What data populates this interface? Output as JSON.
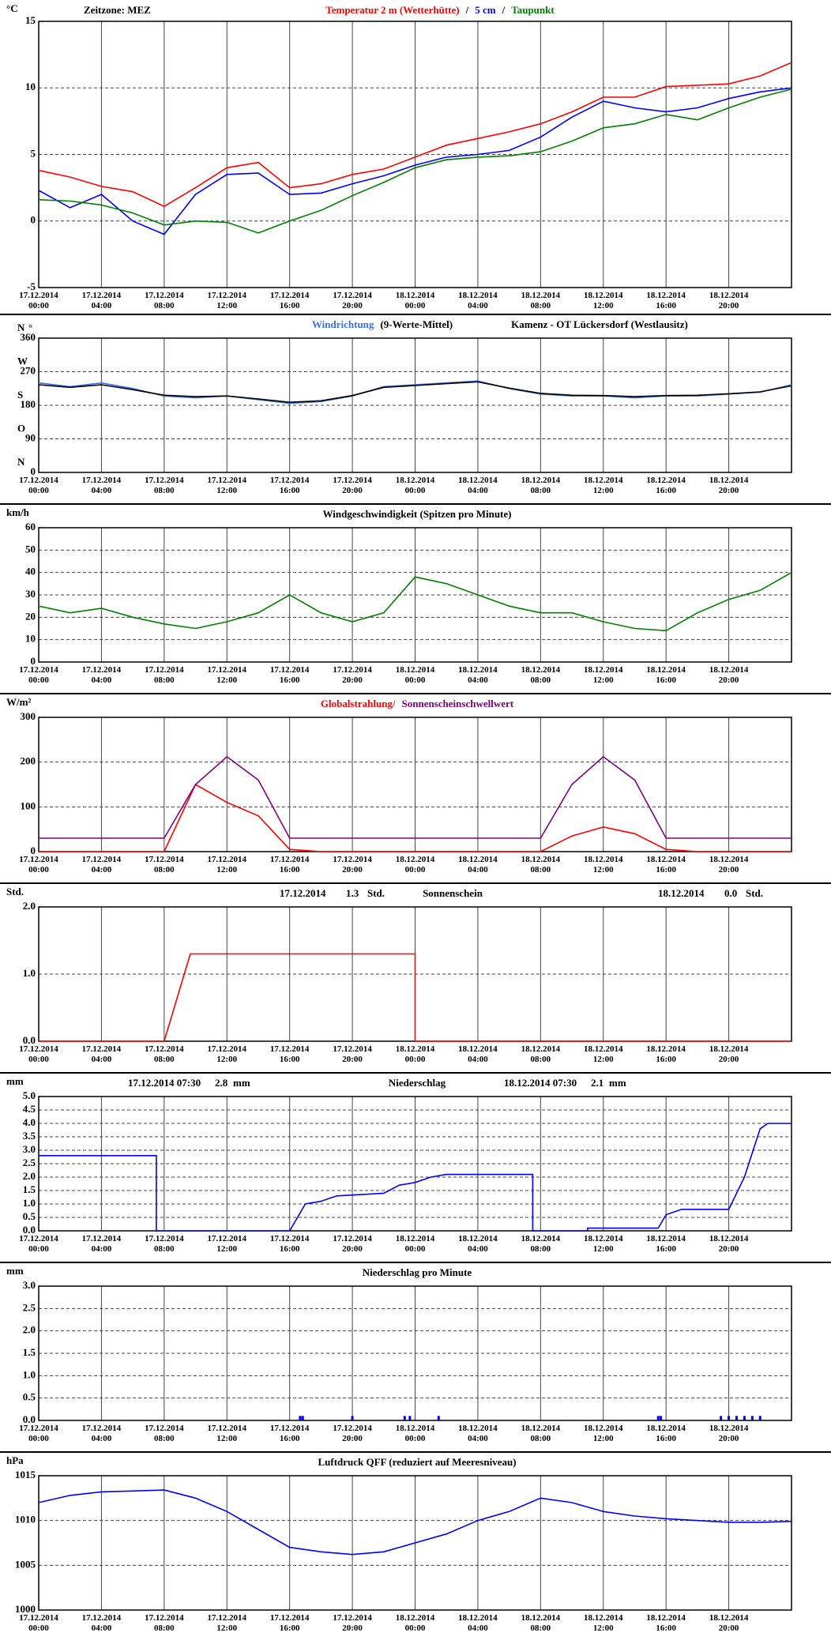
{
  "chart_data": [
    {
      "type": "line",
      "ylabel": "°C",
      "annotation": "Zeitzone: MEZ",
      "legend_separator": "/",
      "x": [
        "17.12.2014 00:00",
        "17.12.2014 02:00",
        "17.12.2014 04:00",
        "17.12.2014 06:00",
        "17.12.2014 08:00",
        "17.12.2014 10:00",
        "17.12.2014 12:00",
        "17.12.2014 14:00",
        "17.12.2014 16:00",
        "17.12.2014 18:00",
        "17.12.2014 20:00",
        "17.12.2014 22:00",
        "18.12.2014 00:00",
        "18.12.2014 02:00",
        "18.12.2014 04:00",
        "18.12.2014 06:00",
        "18.12.2014 08:00",
        "18.12.2014 10:00",
        "18.12.2014 12:00",
        "18.12.2014 14:00",
        "18.12.2014 16:00",
        "18.12.2014 18:00",
        "18.12.2014 20:00",
        "18.12.2014 22:00",
        "19.12.2014 00:00"
      ],
      "series": [
        {
          "name": "Temperatur 2 m (Wetterhütte)",
          "color": "#ff0000",
          "values": [
            3.8,
            3.3,
            2.6,
            2.2,
            1.1,
            2.5,
            4.0,
            4.4,
            2.5,
            2.8,
            3.5,
            3.9,
            4.8,
            5.7,
            6.2,
            6.7,
            7.3,
            8.2,
            9.3,
            9.3,
            10.1,
            10.2,
            10.3,
            10.9,
            11.9
          ]
        },
        {
          "name": "5 cm",
          "color": "#0000ff",
          "values": [
            2.3,
            1.0,
            2.0,
            0.0,
            -1.0,
            2.0,
            3.5,
            3.6,
            2.0,
            2.1,
            2.8,
            3.4,
            4.2,
            4.8,
            5.0,
            5.3,
            6.3,
            7.8,
            9.0,
            8.5,
            8.2,
            8.5,
            9.2,
            9.7,
            10.0
          ]
        },
        {
          "name": "Taupunkt",
          "color": "#008000",
          "values": [
            1.6,
            1.5,
            1.2,
            0.6,
            -0.3,
            0.0,
            -0.1,
            -0.9,
            0.0,
            0.8,
            1.9,
            2.9,
            4.0,
            4.6,
            4.8,
            4.9,
            5.2,
            6.0,
            7.0,
            7.3,
            8.0,
            7.6,
            8.5,
            9.3,
            9.9
          ]
        }
      ],
      "xlim": [
        "17.12.2014 00:00",
        "19.12.2014 00:00"
      ],
      "xticks": [
        "17.12.2014 00:00",
        "17.12.2014 04:00",
        "17.12.2014 08:00",
        "17.12.2014 12:00",
        "17.12.2014 16:00",
        "17.12.2014 20:00",
        "18.12.2014 00:00",
        "18.12.2014 04:00",
        "18.12.2014 08:00",
        "18.12.2014 12:00",
        "18.12.2014 16:00",
        "18.12.2014 20:00"
      ],
      "ylim": [
        -5,
        15
      ],
      "yticks": [
        -5,
        0,
        5,
        10,
        15
      ],
      "grid": true
    },
    {
      "type": "line",
      "ylabel": "°",
      "subtitle": "Kamenz - OT Lückersdorf (Westlausitz)",
      "direction_labels": [
        "N",
        "O",
        "S",
        "W",
        "N"
      ],
      "x": [
        "17.12.2014 00:00",
        "17.12.2014 02:00",
        "17.12.2014 04:00",
        "17.12.2014 06:00",
        "17.12.2014 08:00",
        "17.12.2014 10:00",
        "17.12.2014 12:00",
        "17.12.2014 14:00",
        "17.12.2014 16:00",
        "17.12.2014 18:00",
        "17.12.2014 20:00",
        "17.12.2014 22:00",
        "18.12.2014 00:00",
        "18.12.2014 02:00",
        "18.12.2014 04:00",
        "18.12.2014 06:00",
        "18.12.2014 08:00",
        "18.12.2014 10:00",
        "18.12.2014 12:00",
        "18.12.2014 14:00",
        "18.12.2014 16:00",
        "18.12.2014 18:00",
        "18.12.2014 20:00",
        "18.12.2014 22:00",
        "19.12.2014 00:00"
      ],
      "series": [
        {
          "name": "Windrichtung",
          "color": "#3a6ff0",
          "values": [
            240,
            230,
            240,
            225,
            205,
            200,
            205,
            195,
            185,
            190,
            205,
            230,
            235,
            240,
            245,
            225,
            210,
            205,
            205,
            200,
            205,
            205,
            210,
            215,
            235
          ]
        },
        {
          "name": "(9-Werte-Mittel)",
          "color": "#000000",
          "values": [
            235,
            228,
            235,
            222,
            207,
            203,
            205,
            197,
            188,
            192,
            206,
            228,
            233,
            238,
            243,
            226,
            212,
            207,
            206,
            203,
            206,
            207,
            211,
            216,
            232
          ]
        }
      ],
      "xlim": [
        "17.12.2014 00:00",
        "19.12.2014 00:00"
      ],
      "xticks": [
        "17.12.2014 00:00",
        "17.12.2014 04:00",
        "17.12.2014 08:00",
        "17.12.2014 12:00",
        "17.12.2014 16:00",
        "17.12.2014 20:00",
        "18.12.2014 00:00",
        "18.12.2014 04:00",
        "18.12.2014 08:00",
        "18.12.2014 12:00",
        "18.12.2014 16:00",
        "18.12.2014 20:00"
      ],
      "ylim": [
        0,
        360
      ],
      "yticks": [
        0,
        90,
        180,
        270,
        360
      ],
      "grid": true
    },
    {
      "type": "line",
      "ylabel": "km/h",
      "title": "Windgeschwindigkeit (Spitzen pro Minute)",
      "x": [
        "17.12.2014 00:00",
        "17.12.2014 02:00",
        "17.12.2014 04:00",
        "17.12.2014 06:00",
        "17.12.2014 08:00",
        "17.12.2014 10:00",
        "17.12.2014 12:00",
        "17.12.2014 14:00",
        "17.12.2014 16:00",
        "17.12.2014 18:00",
        "17.12.2014 20:00",
        "17.12.2014 22:00",
        "18.12.2014 00:00",
        "18.12.2014 02:00",
        "18.12.2014 04:00",
        "18.12.2014 06:00",
        "18.12.2014 08:00",
        "18.12.2014 10:00",
        "18.12.2014 12:00",
        "18.12.2014 14:00",
        "18.12.2014 16:00",
        "18.12.2014 18:00",
        "18.12.2014 20:00",
        "18.12.2014 22:00",
        "19.12.2014 00:00"
      ],
      "series": [
        {
          "color": "#008000",
          "values": [
            25,
            22,
            24,
            20,
            17,
            15,
            18,
            22,
            30,
            22,
            18,
            22,
            38,
            35,
            30,
            25,
            22,
            22,
            18,
            15,
            14,
            22,
            28,
            32,
            40
          ]
        }
      ],
      "xlim": [
        "17.12.2014 00:00",
        "19.12.2014 00:00"
      ],
      "xticks": [
        "17.12.2014 00:00",
        "17.12.2014 04:00",
        "17.12.2014 08:00",
        "17.12.2014 12:00",
        "17.12.2014 16:00",
        "17.12.2014 20:00",
        "18.12.2014 00:00",
        "18.12.2014 04:00",
        "18.12.2014 08:00",
        "18.12.2014 12:00",
        "18.12.2014 16:00",
        "18.12.2014 20:00"
      ],
      "ylim": [
        0,
        60
      ],
      "yticks": [
        0,
        10,
        20,
        30,
        40,
        50,
        60
      ],
      "grid": true
    },
    {
      "type": "line",
      "ylabel": "W/m²",
      "x": [
        "17.12.2014 00:00",
        "17.12.2014 02:00",
        "17.12.2014 04:00",
        "17.12.2014 06:00",
        "17.12.2014 08:00",
        "17.12.2014 10:00",
        "17.12.2014 12:00",
        "17.12.2014 14:00",
        "17.12.2014 16:00",
        "17.12.2014 18:00",
        "17.12.2014 20:00",
        "17.12.2014 22:00",
        "18.12.2014 00:00",
        "18.12.2014 02:00",
        "18.12.2014 04:00",
        "18.12.2014 06:00",
        "18.12.2014 08:00",
        "18.12.2014 10:00",
        "18.12.2014 12:00",
        "18.12.2014 14:00",
        "18.12.2014 16:00",
        "18.12.2014 18:00",
        "18.12.2014 20:00",
        "18.12.2014 22:00",
        "19.12.2014 00:00"
      ],
      "series": [
        {
          "name": "Globalstrahlung/",
          "color": "#ff0000",
          "values": [
            0,
            0,
            0,
            0,
            0,
            150,
            110,
            80,
            5,
            0,
            0,
            0,
            0,
            0,
            0,
            0,
            0,
            35,
            55,
            40,
            5,
            0,
            0,
            0,
            0
          ]
        },
        {
          "name": "Sonnenscheinschwellwert",
          "color": "#800080",
          "values": [
            30,
            30,
            30,
            30,
            30,
            150,
            212,
            160,
            30,
            30,
            30,
            30,
            30,
            30,
            30,
            30,
            30,
            150,
            212,
            160,
            30,
            30,
            30,
            30,
            30
          ]
        }
      ],
      "xlim": [
        "17.12.2014 00:00",
        "19.12.2014 00:00"
      ],
      "xticks": [
        "17.12.2014 00:00",
        "17.12.2014 04:00",
        "17.12.2014 08:00",
        "17.12.2014 12:00",
        "17.12.2014 16:00",
        "17.12.2014 20:00",
        "18.12.2014 00:00",
        "18.12.2014 04:00",
        "18.12.2014 08:00",
        "18.12.2014 12:00",
        "18.12.2014 16:00",
        "18.12.2014 20:00"
      ],
      "ylim": [
        0,
        300
      ],
      "yticks": [
        0,
        100,
        200,
        300
      ],
      "grid": true
    },
    {
      "type": "line",
      "ylabel": "Std.",
      "title": "Sonnenschein",
      "annotations": [
        [
          "17.12.2014",
          "1.3",
          "Std."
        ],
        [
          "18.12.2014",
          "0.0",
          "Std."
        ]
      ],
      "x": [
        "17.12.2014 00:00",
        "17.12.2014 08:00",
        "17.12.2014 09:40",
        "18.12.2014 00:00",
        "18.12.2014 00:00",
        "19.12.2014 00:00"
      ],
      "series": [
        {
          "color": "#ff0000",
          "values": [
            0,
            0,
            1.3,
            1.3,
            0,
            0
          ]
        }
      ],
      "xlim": [
        "17.12.2014 00:00",
        "19.12.2014 00:00"
      ],
      "xticks": [
        "17.12.2014 00:00",
        "17.12.2014 04:00",
        "17.12.2014 08:00",
        "17.12.2014 12:00",
        "17.12.2014 16:00",
        "17.12.2014 20:00",
        "18.12.2014 00:00",
        "18.12.2014 04:00",
        "18.12.2014 08:00",
        "18.12.2014 12:00",
        "18.12.2014 16:00",
        "18.12.2014 20:00"
      ],
      "ylim": [
        0,
        2
      ],
      "yticks": [
        {
          "value": 0,
          "label": "0.0"
        },
        {
          "value": 1,
          "label": "1.0"
        },
        {
          "value": 2,
          "label": "2.0"
        }
      ],
      "grid": true
    },
    {
      "type": "line",
      "ylabel": "mm",
      "title": "Niederschlag",
      "annotations": [
        [
          "17.12.2014 07:30",
          "2.8",
          "mm"
        ],
        [
          "18.12.2014 07:30",
          "2.1",
          "mm"
        ]
      ],
      "x": [
        "17.12.2014 00:00",
        "17.12.2014 07:30",
        "17.12.2014 07:30",
        "17.12.2014 16:00",
        "17.12.2014 17:00",
        "17.12.2014 18:00",
        "17.12.2014 19:00",
        "17.12.2014 22:00",
        "17.12.2014 23:00",
        "18.12.2014 00:00",
        "18.12.2014 01:00",
        "18.12.2014 02:00",
        "18.12.2014 07:30",
        "18.12.2014 07:30",
        "18.12.2014 11:00",
        "18.12.2014 11:00",
        "18.12.2014 15:30",
        "18.12.2014 16:00",
        "18.12.2014 17:00",
        "18.12.2014 20:00",
        "18.12.2014 21:00",
        "18.12.2014 22:00",
        "18.12.2014 22:30",
        "19.12.2014 00:00"
      ],
      "series": [
        {
          "color": "#0000ff",
          "values": [
            2.8,
            2.8,
            0,
            0,
            1.0,
            1.1,
            1.3,
            1.4,
            1.7,
            1.8,
            2.0,
            2.1,
            2.1,
            0,
            0,
            0.1,
            0.1,
            0.6,
            0.8,
            0.8,
            2.0,
            3.8,
            4.0,
            4.0
          ]
        }
      ],
      "xlim": [
        "17.12.2014 00:00",
        "19.12.2014 00:00"
      ],
      "xticks": [
        "17.12.2014 00:00",
        "17.12.2014 04:00",
        "17.12.2014 08:00",
        "17.12.2014 12:00",
        "17.12.2014 16:00",
        "17.12.2014 20:00",
        "18.12.2014 00:00",
        "18.12.2014 04:00",
        "18.12.2014 08:00",
        "18.12.2014 12:00",
        "18.12.2014 16:00",
        "18.12.2014 20:00"
      ],
      "ylim": [
        0,
        5
      ],
      "yticks": [
        {
          "value": 0,
          "label": "0.0"
        },
        0.5,
        {
          "value": 1,
          "label": "1.0"
        },
        1.5,
        {
          "value": 2,
          "label": "2.0"
        },
        2.5,
        {
          "value": 3,
          "label": "3.0"
        },
        3.5,
        {
          "value": 4,
          "label": "4.0"
        },
        4.5,
        {
          "value": 5,
          "label": "5.0"
        }
      ],
      "grid": true
    },
    {
      "type": "bar",
      "ylabel": "mm",
      "title": "Niederschlag pro Minute",
      "x": [
        "17.12.2014 16:40",
        "17.12.2014 16:50",
        "17.12.2014 20:00",
        "17.12.2014 23:20",
        "17.12.2014 23:40",
        "18.12.2014 01:30",
        "18.12.2014 15:30",
        "18.12.2014 15:40",
        "18.12.2014 19:30",
        "18.12.2014 20:00",
        "18.12.2014 20:30",
        "18.12.2014 21:00",
        "18.12.2014 21:30",
        "18.12.2014 22:00"
      ],
      "values": [
        0.1,
        0.1,
        0.1,
        0.1,
        0.1,
        0.1,
        0.1,
        0.1,
        0.1,
        0.1,
        0.1,
        0.1,
        0.1,
        0.1
      ],
      "color": "#0000ff",
      "xlim": [
        "17.12.2014 00:00",
        "19.12.2014 00:00"
      ],
      "xticks": [
        "17.12.2014 00:00",
        "17.12.2014 04:00",
        "17.12.2014 08:00",
        "17.12.2014 12:00",
        "17.12.2014 16:00",
        "17.12.2014 20:00",
        "18.12.2014 00:00",
        "18.12.2014 04:00",
        "18.12.2014 08:00",
        "18.12.2014 12:00",
        "18.12.2014 16:00",
        "18.12.2014 20:00"
      ],
      "ylim": [
        0,
        3
      ],
      "yticks": [
        {
          "value": 0,
          "label": "0.0"
        },
        0.5,
        {
          "value": 1,
          "label": "1.0"
        },
        1.5,
        {
          "value": 2,
          "label": "2.0"
        },
        2.5,
        {
          "value": 3,
          "label": "3.0"
        }
      ],
      "grid": true
    },
    {
      "type": "line",
      "ylabel": "hPa",
      "title": "Luftdruck QFF (reduziert auf Meeresniveau)",
      "x": [
        "17.12.2014 00:00",
        "17.12.2014 02:00",
        "17.12.2014 04:00",
        "17.12.2014 06:00",
        "17.12.2014 08:00",
        "17.12.2014 10:00",
        "17.12.2014 12:00",
        "17.12.2014 14:00",
        "17.12.2014 16:00",
        "17.12.2014 18:00",
        "17.12.2014 20:00",
        "17.12.2014 22:00",
        "18.12.2014 00:00",
        "18.12.2014 02:00",
        "18.12.2014 04:00",
        "18.12.2014 06:00",
        "18.12.2014 08:00",
        "18.12.2014 10:00",
        "18.12.2014 12:00",
        "18.12.2014 14:00",
        "18.12.2014 16:00",
        "18.12.2014 18:00",
        "18.12.2014 20:00",
        "18.12.2014 22:00",
        "19.12.2014 00:00"
      ],
      "series": [
        {
          "color": "#0000ff",
          "values": [
            1012,
            1012.8,
            1013.2,
            1013.3,
            1013.4,
            1012.5,
            1011,
            1009,
            1007,
            1006.5,
            1006.2,
            1006.5,
            1007.5,
            1008.5,
            1010,
            1011,
            1012.5,
            1012,
            1011,
            1010.5,
            1010.2,
            1010,
            1009.8,
            1009.8,
            1009.9
          ]
        }
      ],
      "xlim": [
        "17.12.2014 00:00",
        "19.12.2014 00:00"
      ],
      "xticks": [
        "17.12.2014 00:00",
        "17.12.2014 04:00",
        "17.12.2014 08:00",
        "17.12.2014 12:00",
        "17.12.2014 16:00",
        "17.12.2014 20:00",
        "18.12.2014 00:00",
        "18.12.2014 04:00",
        "18.12.2014 08:00",
        "18.12.2014 12:00",
        "18.12.2014 16:00",
        "18.12.2014 20:00"
      ],
      "ylim": [
        1000,
        1015
      ],
      "yticks": [
        1000,
        1005,
        1010,
        1015
      ],
      "grid": true
    }
  ]
}
